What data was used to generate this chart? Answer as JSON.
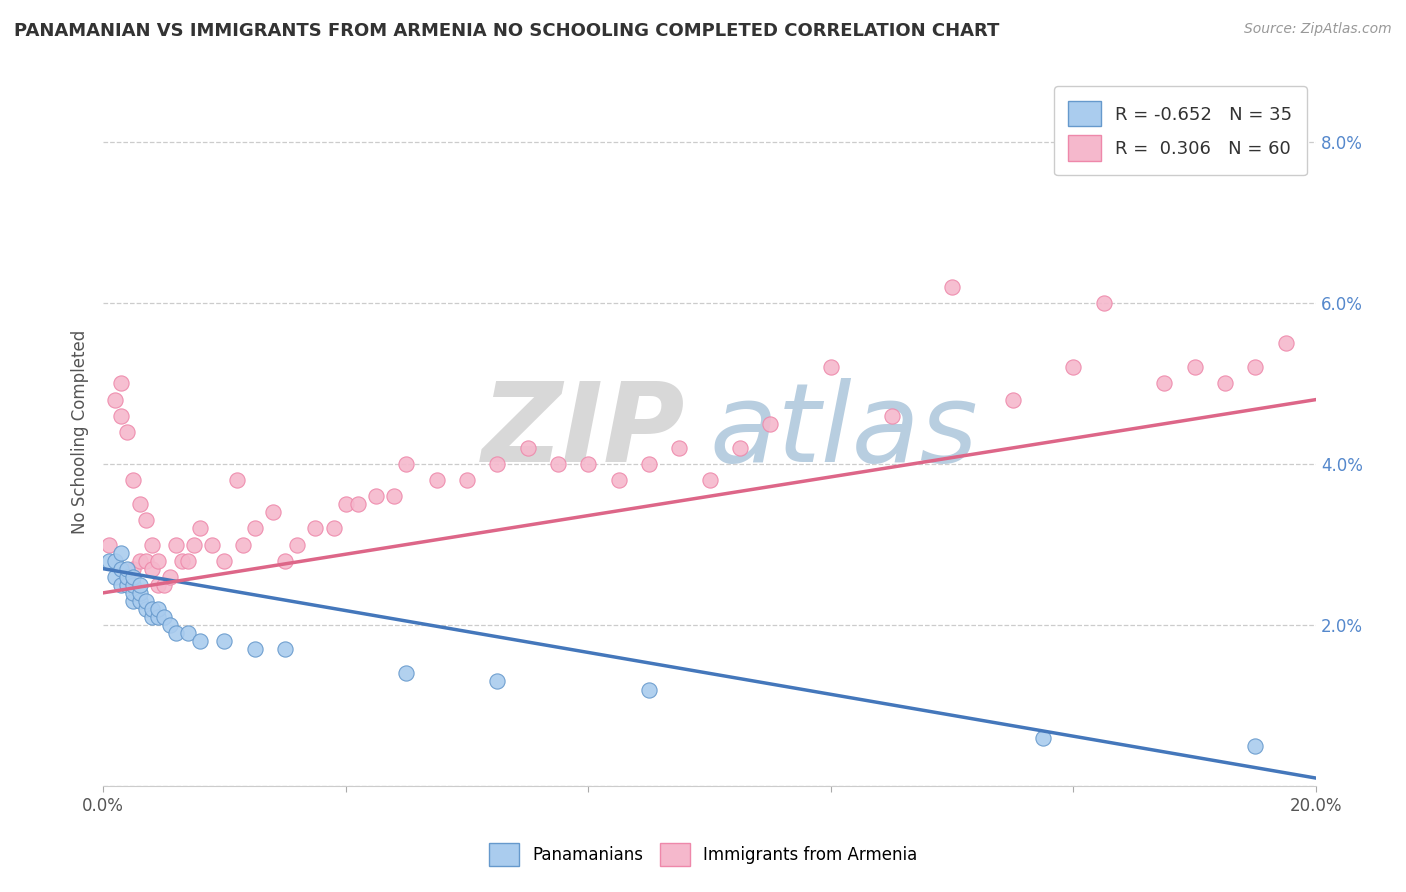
{
  "title": "PANAMANIAN VS IMMIGRANTS FROM ARMENIA NO SCHOOLING COMPLETED CORRELATION CHART",
  "source": "Source: ZipAtlas.com",
  "ylabel": "No Schooling Completed",
  "xlim": [
    0.0,
    0.2
  ],
  "ylim": [
    0.0,
    0.088
  ],
  "yticks": [
    0.0,
    0.02,
    0.04,
    0.06,
    0.08
  ],
  "ytick_labels": [
    "",
    "2.0%",
    "4.0%",
    "6.0%",
    "8.0%"
  ],
  "xticks": [
    0.0,
    0.04,
    0.08,
    0.12,
    0.16,
    0.2
  ],
  "xtick_labels": [
    "0.0%",
    "",
    "",
    "",
    "",
    "20.0%"
  ],
  "blue_color": "#aaccee",
  "pink_color": "#f5b8cc",
  "blue_edge_color": "#6699cc",
  "pink_edge_color": "#ee88aa",
  "blue_line_color": "#4477bb",
  "pink_line_color": "#dd6688",
  "legend_R_blue": "-0.652",
  "legend_N_blue": "35",
  "legend_R_pink": "0.306",
  "legend_N_pink": "60",
  "blue_scatter_x": [
    0.001,
    0.002,
    0.002,
    0.003,
    0.003,
    0.003,
    0.004,
    0.004,
    0.004,
    0.005,
    0.005,
    0.005,
    0.005,
    0.006,
    0.006,
    0.006,
    0.007,
    0.007,
    0.008,
    0.008,
    0.009,
    0.009,
    0.01,
    0.011,
    0.012,
    0.014,
    0.016,
    0.02,
    0.025,
    0.03,
    0.05,
    0.065,
    0.09,
    0.155,
    0.19
  ],
  "blue_scatter_y": [
    0.028,
    0.026,
    0.028,
    0.025,
    0.027,
    0.029,
    0.025,
    0.026,
    0.027,
    0.023,
    0.024,
    0.025,
    0.026,
    0.023,
    0.024,
    0.025,
    0.022,
    0.023,
    0.021,
    0.022,
    0.021,
    0.022,
    0.021,
    0.02,
    0.019,
    0.019,
    0.018,
    0.018,
    0.017,
    0.017,
    0.014,
    0.013,
    0.012,
    0.006,
    0.005
  ],
  "pink_scatter_x": [
    0.001,
    0.002,
    0.003,
    0.003,
    0.004,
    0.005,
    0.005,
    0.006,
    0.006,
    0.007,
    0.007,
    0.008,
    0.008,
    0.009,
    0.009,
    0.01,
    0.011,
    0.012,
    0.013,
    0.014,
    0.015,
    0.016,
    0.018,
    0.02,
    0.022,
    0.023,
    0.025,
    0.028,
    0.03,
    0.032,
    0.035,
    0.038,
    0.04,
    0.042,
    0.045,
    0.048,
    0.05,
    0.055,
    0.06,
    0.065,
    0.07,
    0.075,
    0.08,
    0.085,
    0.09,
    0.095,
    0.1,
    0.105,
    0.11,
    0.12,
    0.13,
    0.14,
    0.15,
    0.16,
    0.165,
    0.175,
    0.18,
    0.185,
    0.19,
    0.195
  ],
  "pink_scatter_y": [
    0.03,
    0.048,
    0.046,
    0.05,
    0.044,
    0.027,
    0.038,
    0.028,
    0.035,
    0.028,
    0.033,
    0.027,
    0.03,
    0.025,
    0.028,
    0.025,
    0.026,
    0.03,
    0.028,
    0.028,
    0.03,
    0.032,
    0.03,
    0.028,
    0.038,
    0.03,
    0.032,
    0.034,
    0.028,
    0.03,
    0.032,
    0.032,
    0.035,
    0.035,
    0.036,
    0.036,
    0.04,
    0.038,
    0.038,
    0.04,
    0.042,
    0.04,
    0.04,
    0.038,
    0.04,
    0.042,
    0.038,
    0.042,
    0.045,
    0.052,
    0.046,
    0.062,
    0.048,
    0.052,
    0.06,
    0.05,
    0.052,
    0.05,
    0.052,
    0.055
  ],
  "blue_trend_x": [
    0.0,
    0.2
  ],
  "blue_trend_y": [
    0.027,
    0.001
  ],
  "pink_trend_x": [
    0.0,
    0.2
  ],
  "pink_trend_y": [
    0.024,
    0.048
  ],
  "background_color": "#ffffff",
  "grid_color": "#cccccc"
}
